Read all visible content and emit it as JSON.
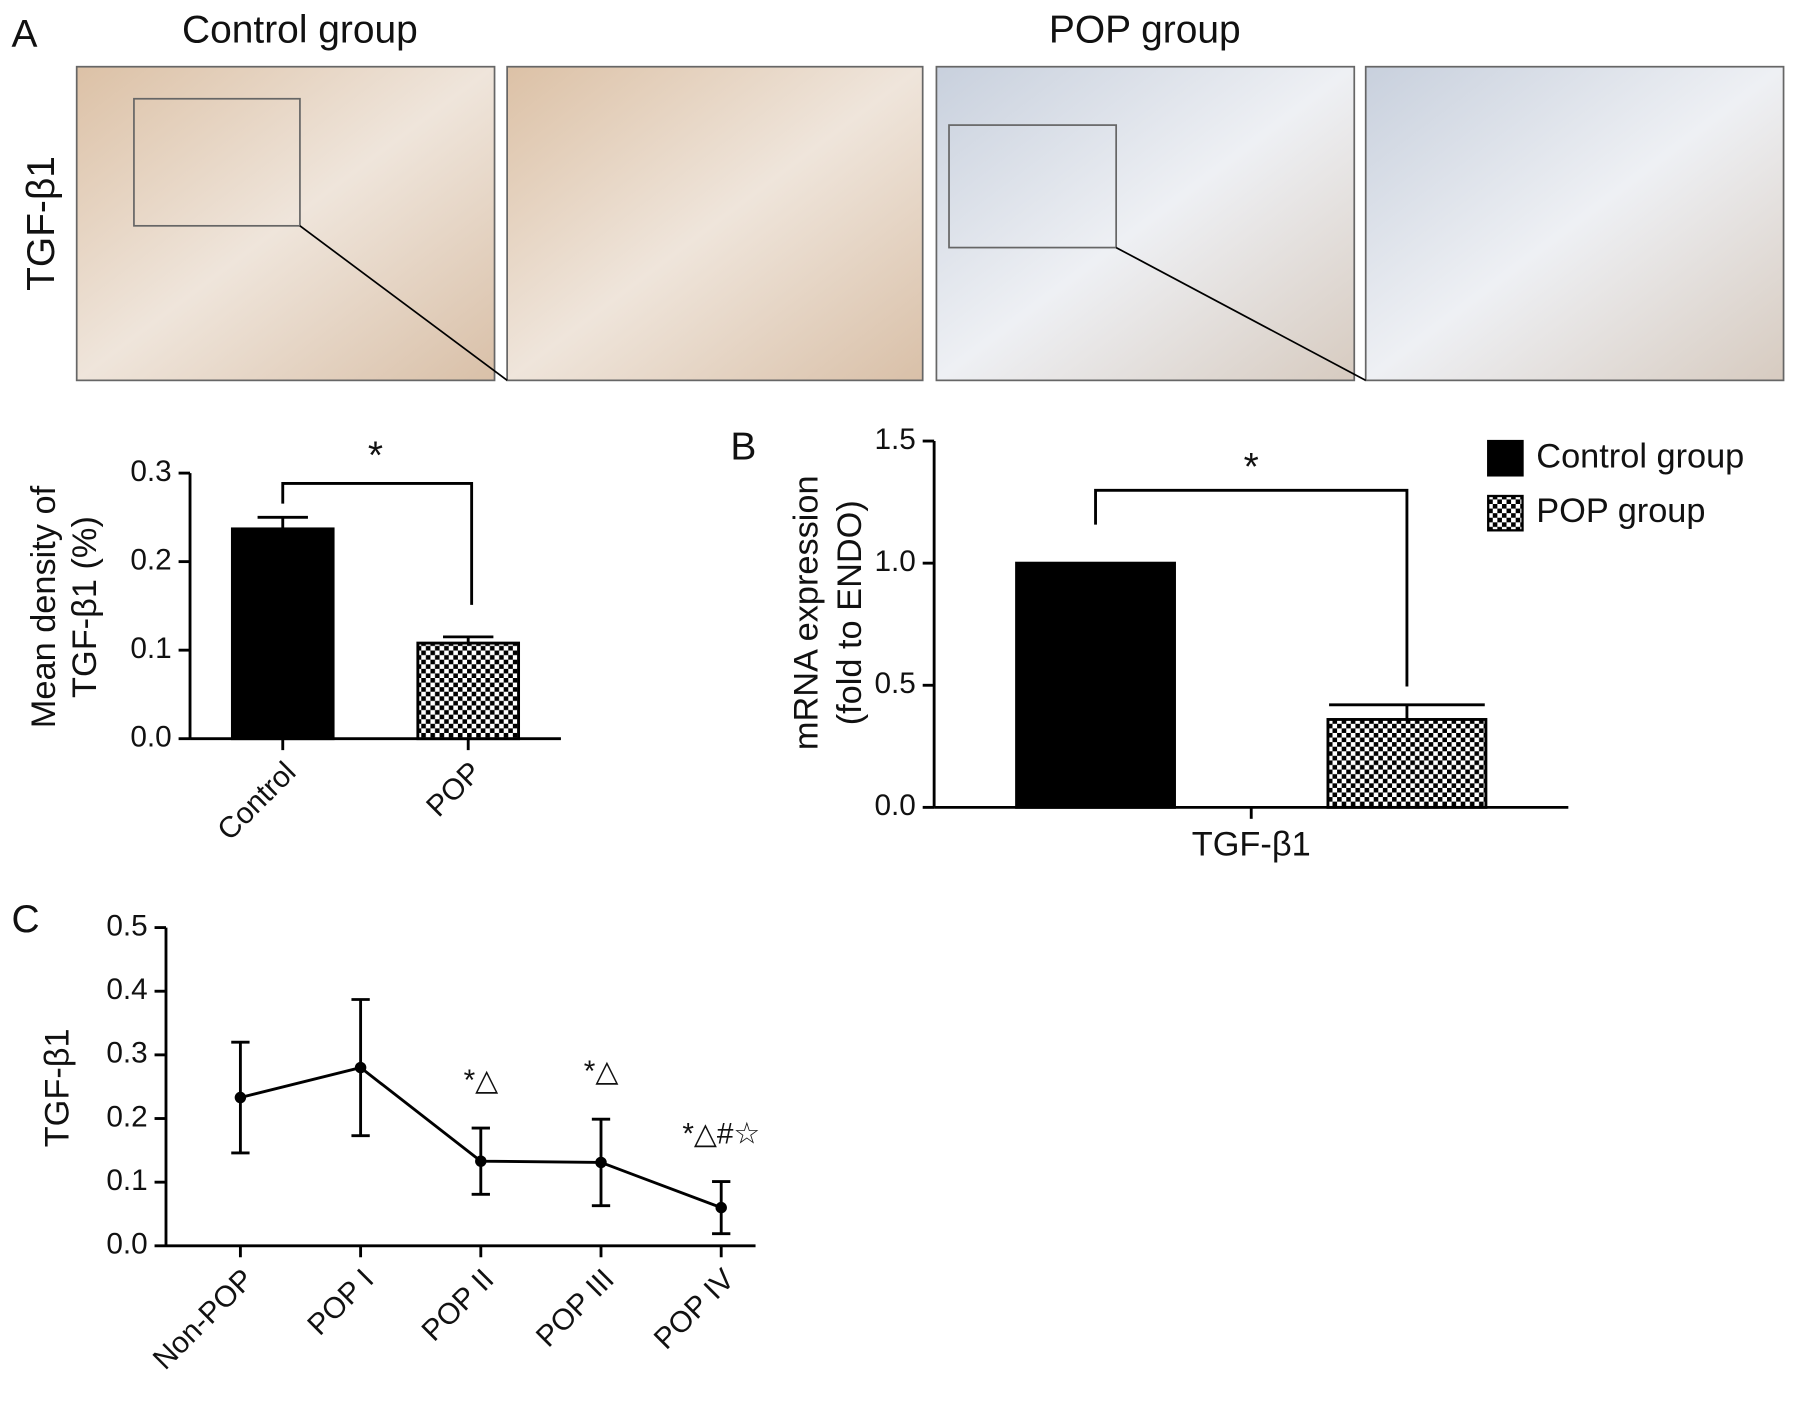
{
  "panel_labels": [
    "A",
    "B",
    "C"
  ],
  "micrographs": {
    "row_label": "TGF-β1",
    "groups": [
      "Control group",
      "POP group"
    ]
  },
  "chart_data": [
    {
      "type": "bar",
      "ylabel": [
        "Mean density of",
        "TGF-β1 (%)"
      ],
      "categories": [
        "Control",
        "POP"
      ],
      "values": [
        0.237,
        0.108
      ],
      "errors": [
        0.013,
        0.007
      ],
      "colors": [
        "#000000",
        "#000000"
      ],
      "patterns": [
        "solid",
        "checkerboard"
      ],
      "ylim": [
        0,
        0.3
      ],
      "yticks": [
        {
          "value": 0,
          "label": "0.0"
        },
        0.1,
        0.2,
        0.3
      ],
      "significance": "*"
    },
    {
      "type": "bar",
      "ylabel": [
        "mRNA expression",
        "(fold to ENDO)"
      ],
      "categories": [
        "TGF-β1"
      ],
      "series": [
        {
          "name": "Control group",
          "color": "#000000",
          "pattern": "solid",
          "values": [
            1.0
          ]
        },
        {
          "name": "POP group",
          "color": "#000000",
          "pattern": "checkerboard",
          "values": [
            0.36
          ],
          "errors": [
            0.06
          ]
        }
      ],
      "ylim": [
        0,
        1.5
      ],
      "yticks": [
        {
          "value": 0,
          "label": "0.0"
        },
        0.5,
        {
          "value": 1,
          "label": "1.0"
        },
        1.5
      ],
      "legend": "upper right",
      "significance": "*"
    },
    {
      "type": "line",
      "ylabel": "TGF-β1",
      "categories": [
        "Non-POP",
        "POP I",
        "POP II",
        "POP III",
        "POP IV"
      ],
      "values": [
        0.233,
        0.28,
        0.133,
        0.131,
        0.06
      ],
      "errors": [
        0.087,
        0.107,
        0.052,
        0.068,
        0.041
      ],
      "annotations": [
        null,
        null,
        "*△",
        "*△",
        "*△#☆"
      ],
      "color": "#000000",
      "ylim": [
        0,
        0.5
      ],
      "yticks": [
        {
          "value": 0,
          "label": "0.0"
        },
        0.1,
        0.2,
        0.3,
        0.4,
        0.5
      ]
    }
  ]
}
